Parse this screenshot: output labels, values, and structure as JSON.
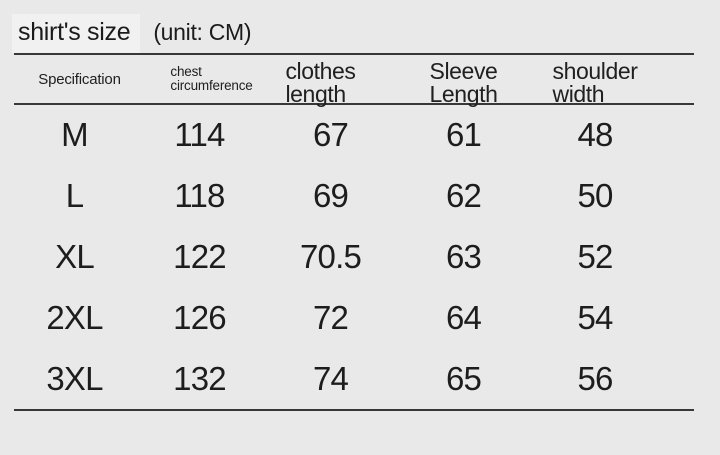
{
  "header": {
    "specification": "Specification",
    "chest": [
      "chest",
      "circumference"
    ],
    "clothes": [
      "clothes",
      "length"
    ],
    "sleeve": [
      "Sleeve",
      "Length"
    ],
    "shoulder": [
      "shoulder",
      "width"
    ]
  },
  "chart_data": {
    "type": "table",
    "title": "shirt's size",
    "unit_label": "(unit: CM)",
    "columns": [
      "Specification",
      "chest circumference",
      "clothes length",
      "Sleeve Length",
      "shoulder width"
    ],
    "rows": [
      [
        "M",
        114,
        67,
        61,
        48
      ],
      [
        "L",
        118,
        69,
        62,
        50
      ],
      [
        "XL",
        122,
        70.5,
        63,
        52
      ],
      [
        "2XL",
        126,
        72,
        64,
        54
      ],
      [
        "3XL",
        132,
        74,
        65,
        56
      ]
    ]
  }
}
